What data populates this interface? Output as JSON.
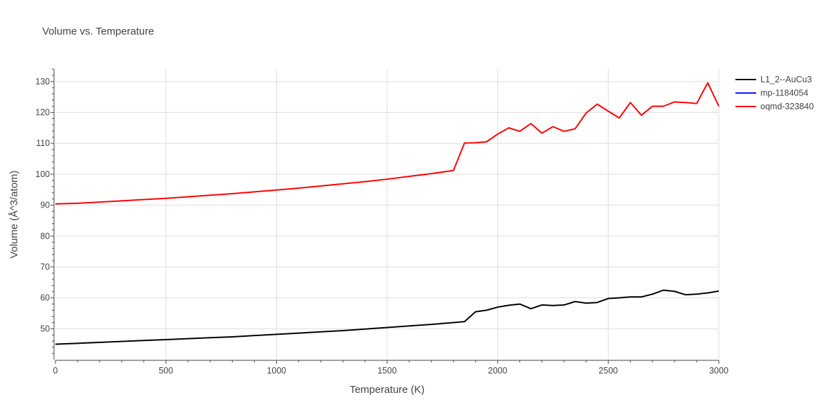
{
  "chart_data": {
    "type": "line",
    "title": "Volume vs. Temperature",
    "xlabel": "Temperature (K)",
    "ylabel": "Volume (Å^3/atom)",
    "xlim": [
      0,
      3000
    ],
    "ylim": [
      40,
      134
    ],
    "x_ticks": [
      0,
      500,
      1000,
      1500,
      2000,
      2500,
      3000
    ],
    "y_ticks": [
      50,
      60,
      70,
      80,
      90,
      100,
      110,
      120,
      130
    ],
    "grid": true,
    "legend_position": "top-right",
    "series": [
      {
        "name": "L1_2--AuCu3",
        "color": "#000000",
        "x": [
          0,
          100,
          200,
          300,
          400,
          500,
          600,
          700,
          800,
          900,
          1000,
          1100,
          1200,
          1300,
          1400,
          1500,
          1600,
          1700,
          1800,
          1850,
          1900,
          1950,
          2000,
          2050,
          2100,
          2150,
          2200,
          2250,
          2300,
          2350,
          2400,
          2450,
          2500,
          2550,
          2600,
          2650,
          2700,
          2750,
          2800,
          2850,
          2900,
          2950,
          3000
        ],
        "y": [
          45.0,
          45.3,
          45.6,
          45.9,
          46.2,
          46.5,
          46.8,
          47.1,
          47.4,
          47.8,
          48.2,
          48.6,
          49.0,
          49.4,
          49.9,
          50.4,
          50.9,
          51.4,
          52.0,
          52.3,
          55.5,
          56.0,
          57.0,
          57.6,
          58.0,
          56.5,
          57.7,
          57.5,
          57.7,
          58.8,
          58.3,
          58.5,
          59.8,
          60.0,
          60.3,
          60.3,
          61.2,
          62.5,
          62.1,
          61.0,
          61.2,
          61.6,
          62.2
        ]
      },
      {
        "name": "mp-1184054",
        "color": "#0000ff",
        "x": [],
        "y": []
      },
      {
        "name": "oqmd-323840",
        "color": "#ff0000",
        "x": [
          0,
          100,
          200,
          300,
          400,
          500,
          600,
          700,
          800,
          900,
          1000,
          1100,
          1200,
          1300,
          1400,
          1500,
          1600,
          1700,
          1800,
          1850,
          1900,
          1950,
          2000,
          2050,
          2100,
          2150,
          2200,
          2250,
          2300,
          2350,
          2400,
          2450,
          2500,
          2550,
          2600,
          2650,
          2700,
          2750,
          2800,
          2850,
          2900,
          2950,
          3000
        ],
        "y": [
          90.4,
          90.6,
          91.0,
          91.4,
          91.8,
          92.2,
          92.7,
          93.2,
          93.7,
          94.3,
          94.9,
          95.5,
          96.2,
          96.9,
          97.6,
          98.4,
          99.3,
          100.2,
          101.2,
          110.1,
          110.2,
          110.5,
          113.0,
          115.0,
          113.9,
          116.4,
          113.3,
          115.4,
          113.9,
          114.7,
          119.8,
          122.7,
          120.4,
          118.2,
          123.2,
          119.1,
          122.0,
          122.0,
          123.4,
          123.2,
          122.9,
          129.6,
          122.0
        ]
      }
    ]
  }
}
